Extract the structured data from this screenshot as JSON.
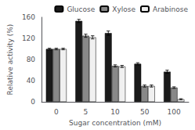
{
  "chart_data": {
    "type": "bar",
    "categories": [
      "0",
      "5",
      "10",
      "50",
      "100"
    ],
    "series": [
      {
        "name": "Glucose",
        "color": "#1a1a1a",
        "values": [
          100,
          153,
          130,
          72,
          57
        ],
        "errors": [
          1.5,
          3,
          4,
          2,
          3
        ]
      },
      {
        "name": "Xylose",
        "color": "#888888",
        "values": [
          100,
          125,
          68,
          30,
          27
        ],
        "errors": [
          1.5,
          3,
          2,
          2,
          1.5
        ]
      },
      {
        "name": "Arabinose",
        "color": "#f0f0f0",
        "values": [
          100,
          122,
          67,
          30,
          5
        ],
        "errors": [
          1.5,
          3,
          2,
          2,
          1
        ]
      }
    ],
    "xlabel": "Sugar concentration (mM)",
    "ylabel": "Relative activity (%)",
    "ylim": [
      0,
      160
    ],
    "yticks": [
      0,
      40,
      80,
      120,
      160
    ],
    "legend": "upper right"
  }
}
